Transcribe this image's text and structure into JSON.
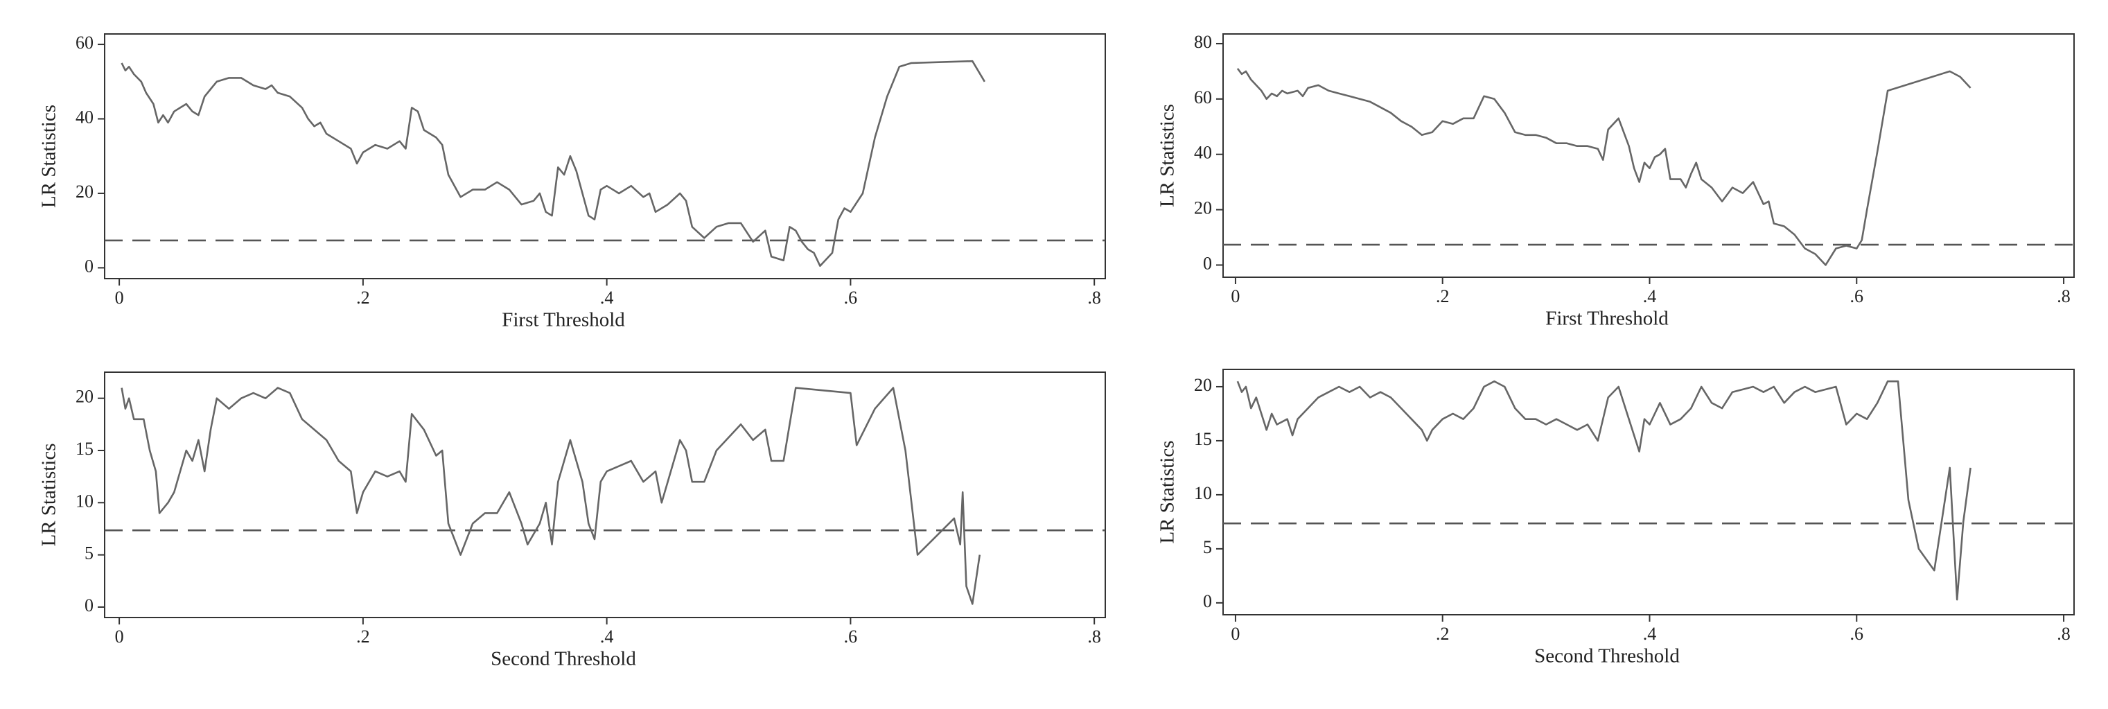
{
  "chart_data": [
    {
      "type": "line",
      "xlabel": "First Threshold",
      "ylabel": "LR Statistics",
      "color": "#666666",
      "reference_line": 7.35,
      "reference_color": "#555555",
      "xlim": [
        -0.012,
        0.809
      ],
      "ylim": [
        -2.9,
        62.8
      ],
      "xticks": [
        0,
        {
          "value": 0.2,
          "label": ".2"
        },
        {
          "value": 0.4,
          "label": ".4"
        },
        {
          "value": 0.6,
          "label": ".6"
        },
        {
          "value": 0.8,
          "label": ".8"
        }
      ],
      "yticks": [
        0,
        20,
        40,
        60
      ],
      "x": [
        0.002,
        0.005,
        0.008,
        0.012,
        0.018,
        0.022,
        0.028,
        0.032,
        0.036,
        0.04,
        0.045,
        0.05,
        0.055,
        0.06,
        0.065,
        0.07,
        0.075,
        0.08,
        0.09,
        0.1,
        0.11,
        0.12,
        0.125,
        0.13,
        0.14,
        0.15,
        0.155,
        0.16,
        0.165,
        0.17,
        0.18,
        0.19,
        0.195,
        0.2,
        0.21,
        0.22,
        0.23,
        0.235,
        0.24,
        0.245,
        0.25,
        0.26,
        0.265,
        0.27,
        0.28,
        0.29,
        0.3,
        0.31,
        0.32,
        0.33,
        0.34,
        0.345,
        0.35,
        0.355,
        0.36,
        0.365,
        0.37,
        0.375,
        0.38,
        0.385,
        0.39,
        0.395,
        0.4,
        0.41,
        0.42,
        0.43,
        0.435,
        0.44,
        0.45,
        0.46,
        0.465,
        0.47,
        0.48,
        0.49,
        0.5,
        0.51,
        0.52,
        0.53,
        0.535,
        0.545,
        0.55,
        0.555,
        0.56,
        0.565,
        0.57,
        0.575,
        0.585,
        0.59,
        0.595,
        0.6,
        0.61,
        0.62,
        0.63,
        0.64,
        0.65,
        0.7,
        0.71
      ],
      "values": [
        55,
        53,
        54,
        52,
        50,
        47,
        44,
        39,
        41,
        39,
        42,
        43,
        44,
        42,
        41,
        46,
        48,
        50,
        51,
        51,
        49,
        48,
        49,
        47,
        46,
        43,
        40,
        38,
        39,
        36,
        34,
        32,
        28,
        31,
        33,
        32,
        34,
        32,
        43,
        42,
        37,
        35,
        33,
        25,
        19,
        21,
        21,
        23,
        21,
        17,
        18,
        20,
        15,
        14,
        27,
        25,
        30,
        26,
        20,
        14,
        13,
        21,
        22,
        20,
        22,
        19,
        20,
        15,
        17,
        20,
        18,
        11,
        8,
        11,
        12,
        12,
        7,
        10,
        3,
        2,
        11,
        10,
        7,
        5,
        4,
        0.5,
        4,
        13,
        16,
        15,
        20,
        35,
        46,
        54,
        55,
        55.5,
        50
      ]
    },
    {
      "type": "line",
      "xlabel": "First Threshold",
      "ylabel": "LR Statistics",
      "color": "#666666",
      "reference_line": 7.35,
      "reference_color": "#555555",
      "xlim": [
        -0.012,
        0.81
      ],
      "ylim": [
        -4.4,
        83.5
      ],
      "xticks": [
        0,
        {
          "value": 0.2,
          "label": ".2"
        },
        {
          "value": 0.4,
          "label": ".4"
        },
        {
          "value": 0.6,
          "label": ".6"
        },
        {
          "value": 0.8,
          "label": ".8"
        }
      ],
      "yticks": [
        0,
        20,
        40,
        60,
        80
      ],
      "x": [
        0.002,
        0.006,
        0.01,
        0.015,
        0.02,
        0.025,
        0.03,
        0.035,
        0.04,
        0.045,
        0.05,
        0.06,
        0.065,
        0.07,
        0.08,
        0.09,
        0.1,
        0.11,
        0.12,
        0.13,
        0.14,
        0.15,
        0.16,
        0.17,
        0.18,
        0.19,
        0.2,
        0.21,
        0.22,
        0.23,
        0.24,
        0.25,
        0.26,
        0.27,
        0.28,
        0.29,
        0.3,
        0.31,
        0.32,
        0.33,
        0.34,
        0.35,
        0.355,
        0.36,
        0.37,
        0.38,
        0.385,
        0.39,
        0.395,
        0.4,
        0.405,
        0.41,
        0.415,
        0.42,
        0.43,
        0.435,
        0.44,
        0.445,
        0.45,
        0.46,
        0.47,
        0.48,
        0.49,
        0.5,
        0.51,
        0.515,
        0.52,
        0.53,
        0.54,
        0.55,
        0.56,
        0.57,
        0.58,
        0.59,
        0.6,
        0.605,
        0.61,
        0.62,
        0.63,
        0.69,
        0.7,
        0.71
      ],
      "values": [
        71,
        69,
        70,
        67,
        65,
        63,
        60,
        62,
        61,
        63,
        62,
        63,
        61,
        64,
        65,
        63,
        62,
        61,
        60,
        59,
        57,
        55,
        52,
        50,
        47,
        48,
        52,
        51,
        53,
        53,
        61,
        60,
        55,
        48,
        47,
        47,
        46,
        44,
        44,
        43,
        43,
        42,
        38,
        49,
        53,
        43,
        35,
        30,
        37,
        35,
        39,
        40,
        42,
        31,
        31,
        28,
        33,
        37,
        31,
        28,
        23,
        28,
        26,
        30,
        22,
        23,
        15,
        14,
        11,
        6,
        4,
        0,
        6,
        7,
        6,
        9,
        20,
        41,
        63,
        70,
        68,
        64
      ]
    },
    {
      "type": "line",
      "xlabel": "Second Threshold",
      "ylabel": "LR Statistics",
      "color": "#666666",
      "reference_line": 7.35,
      "reference_color": "#555555",
      "xlim": [
        -0.012,
        0.809
      ],
      "ylim": [
        -1,
        22.5
      ],
      "xticks": [
        0,
        {
          "value": 0.2,
          "label": ".2"
        },
        {
          "value": 0.4,
          "label": ".4"
        },
        {
          "value": 0.6,
          "label": ".6"
        },
        {
          "value": 0.8,
          "label": ".8"
        }
      ],
      "yticks": [
        0,
        5,
        10,
        15,
        20
      ],
      "x": [
        0.002,
        0.005,
        0.008,
        0.012,
        0.02,
        0.025,
        0.03,
        0.033,
        0.04,
        0.045,
        0.05,
        0.055,
        0.06,
        0.065,
        0.07,
        0.075,
        0.08,
        0.09,
        0.1,
        0.11,
        0.12,
        0.13,
        0.14,
        0.15,
        0.16,
        0.17,
        0.18,
        0.19,
        0.195,
        0.2,
        0.21,
        0.22,
        0.23,
        0.235,
        0.24,
        0.25,
        0.26,
        0.265,
        0.27,
        0.28,
        0.29,
        0.3,
        0.31,
        0.32,
        0.33,
        0.335,
        0.34,
        0.345,
        0.35,
        0.355,
        0.36,
        0.37,
        0.38,
        0.385,
        0.39,
        0.395,
        0.4,
        0.41,
        0.42,
        0.43,
        0.44,
        0.445,
        0.45,
        0.46,
        0.465,
        0.47,
        0.48,
        0.49,
        0.51,
        0.52,
        0.53,
        0.535,
        0.545,
        0.555,
        0.6,
        0.605,
        0.62,
        0.635,
        0.645,
        0.655,
        0.685,
        0.69,
        0.692,
        0.695,
        0.7,
        0.706
      ],
      "values": [
        21,
        19,
        20,
        18,
        18,
        15,
        13,
        9,
        10,
        11,
        13,
        15,
        14,
        16,
        13,
        17,
        20,
        19,
        20,
        20.5,
        20,
        21,
        20.5,
        18,
        17,
        16,
        14,
        13,
        9,
        11,
        13,
        12.5,
        13,
        12,
        18.5,
        17,
        14.5,
        15,
        8,
        5,
        8,
        9,
        9,
        11,
        8,
        6,
        7,
        8,
        10,
        6,
        12,
        16,
        12,
        8,
        6.5,
        12,
        13,
        13.5,
        14,
        12,
        13,
        10,
        12,
        16,
        15,
        12,
        12,
        15,
        17.5,
        16,
        17,
        14,
        14,
        21,
        20.5,
        15.5,
        19,
        21,
        15,
        5,
        8.5,
        6,
        11,
        2,
        0.3,
        5
      ]
    },
    {
      "type": "line",
      "xlabel": "Second Threshold",
      "ylabel": "LR Statistics",
      "color": "#666666",
      "reference_line": 7.35,
      "reference_color": "#555555",
      "xlim": [
        -0.012,
        0.81
      ],
      "ylim": [
        -1.1,
        21.6
      ],
      "xticks": [
        0,
        {
          "value": 0.2,
          "label": ".2"
        },
        {
          "value": 0.4,
          "label": ".4"
        },
        {
          "value": 0.6,
          "label": ".6"
        },
        {
          "value": 0.8,
          "label": ".8"
        }
      ],
      "yticks": [
        0,
        5,
        10,
        15,
        20
      ],
      "x": [
        0.002,
        0.006,
        0.01,
        0.015,
        0.02,
        0.03,
        0.035,
        0.04,
        0.05,
        0.055,
        0.06,
        0.07,
        0.08,
        0.09,
        0.1,
        0.11,
        0.12,
        0.13,
        0.14,
        0.15,
        0.16,
        0.17,
        0.18,
        0.185,
        0.19,
        0.2,
        0.21,
        0.22,
        0.23,
        0.24,
        0.25,
        0.26,
        0.27,
        0.28,
        0.29,
        0.3,
        0.31,
        0.32,
        0.33,
        0.34,
        0.35,
        0.36,
        0.37,
        0.38,
        0.39,
        0.395,
        0.4,
        0.41,
        0.42,
        0.43,
        0.44,
        0.45,
        0.46,
        0.47,
        0.48,
        0.5,
        0.51,
        0.52,
        0.53,
        0.54,
        0.55,
        0.56,
        0.58,
        0.59,
        0.6,
        0.61,
        0.62,
        0.63,
        0.64,
        0.65,
        0.66,
        0.675,
        0.69,
        0.697,
        0.703,
        0.71
      ],
      "values": [
        20.5,
        19.5,
        20,
        18,
        19,
        16,
        17.5,
        16.5,
        17,
        15.5,
        17,
        18,
        19,
        19.5,
        20,
        19.5,
        20,
        19,
        19.5,
        19,
        18,
        17,
        16,
        15,
        16,
        17,
        17.5,
        17,
        18,
        20,
        20.5,
        20,
        18,
        17,
        17,
        16.5,
        17,
        16.5,
        16,
        16.5,
        15,
        19,
        20,
        17,
        14,
        17,
        16.5,
        18.5,
        16.5,
        17,
        18,
        20,
        18.5,
        18,
        19.5,
        20,
        19.5,
        20,
        18.5,
        19.5,
        20,
        19.5,
        20,
        16.5,
        17.5,
        17,
        18.5,
        20.5,
        20.5,
        9.5,
        5,
        3,
        12.5,
        0.3,
        7.5,
        12.5
      ]
    }
  ]
}
